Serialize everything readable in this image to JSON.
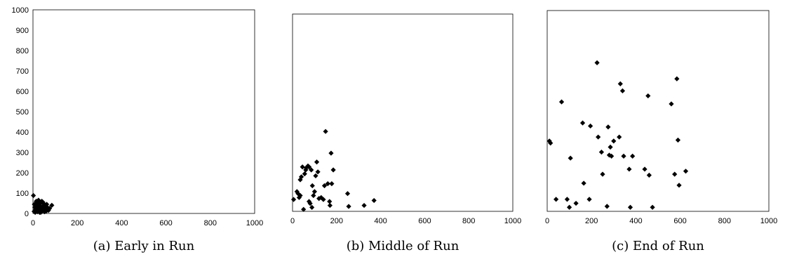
{
  "chart_data": [
    {
      "type": "scatter",
      "caption": "(a) Early in Run",
      "xlim": [
        0,
        1000
      ],
      "ylim": [
        0,
        1000
      ],
      "x_ticks": [
        0,
        200,
        400,
        600,
        800,
        1000
      ],
      "y_ticks": [
        0,
        100,
        200,
        300,
        400,
        500,
        600,
        700,
        800,
        900,
        1000
      ],
      "show_y_tick_labels": true,
      "grid": false,
      "points": [
        [
          2,
          88
        ],
        [
          5,
          10
        ],
        [
          8,
          30
        ],
        [
          10,
          5
        ],
        [
          12,
          20
        ],
        [
          14,
          45
        ],
        [
          16,
          15
        ],
        [
          18,
          35
        ],
        [
          20,
          8
        ],
        [
          22,
          55
        ],
        [
          24,
          25
        ],
        [
          26,
          12
        ],
        [
          28,
          40
        ],
        [
          30,
          5
        ],
        [
          32,
          18
        ],
        [
          34,
          50
        ],
        [
          36,
          30
        ],
        [
          38,
          10
        ],
        [
          40,
          60
        ],
        [
          42,
          22
        ],
        [
          44,
          35
        ],
        [
          46,
          15
        ],
        [
          48,
          48
        ],
        [
          50,
          28
        ],
        [
          52,
          8
        ],
        [
          55,
          40
        ],
        [
          58,
          20
        ],
        [
          60,
          12
        ],
        [
          65,
          30
        ],
        [
          70,
          15
        ],
        [
          75,
          25
        ],
        [
          85,
          40
        ],
        [
          15,
          60
        ],
        [
          25,
          65
        ],
        [
          35,
          5
        ],
        [
          45,
          55
        ],
        [
          6,
          45
        ],
        [
          62,
          45
        ]
      ]
    },
    {
      "type": "scatter",
      "caption": "(b) Middle of Run",
      "xlim": [
        0,
        1000
      ],
      "ylim": [
        0,
        1000
      ],
      "x_ticks": [
        0,
        200,
        400,
        600,
        800,
        1000
      ],
      "y_ticks": [
        0,
        100,
        200,
        300,
        400,
        500,
        600,
        700,
        800,
        900,
        1000
      ],
      "show_y_tick_labels": false,
      "grid": false,
      "points": [
        [
          5,
          60
        ],
        [
          20,
          100
        ],
        [
          25,
          90
        ],
        [
          30,
          70
        ],
        [
          35,
          160
        ],
        [
          40,
          175
        ],
        [
          45,
          225
        ],
        [
          50,
          10
        ],
        [
          55,
          190
        ],
        [
          60,
          210
        ],
        [
          62,
          220
        ],
        [
          70,
          230
        ],
        [
          75,
          225
        ],
        [
          80,
          40
        ],
        [
          85,
          210
        ],
        [
          88,
          20
        ],
        [
          90,
          130
        ],
        [
          95,
          80
        ],
        [
          100,
          100
        ],
        [
          105,
          180
        ],
        [
          110,
          250
        ],
        [
          115,
          200
        ],
        [
          120,
          65
        ],
        [
          130,
          70
        ],
        [
          140,
          60
        ],
        [
          145,
          130
        ],
        [
          150,
          405
        ],
        [
          160,
          140
        ],
        [
          168,
          50
        ],
        [
          170,
          30
        ],
        [
          175,
          295
        ],
        [
          178,
          140
        ],
        [
          185,
          210
        ],
        [
          250,
          90
        ],
        [
          255,
          25
        ],
        [
          325,
          30
        ],
        [
          370,
          55
        ],
        [
          75,
          50
        ],
        [
          35,
          80
        ]
      ]
    },
    {
      "type": "scatter",
      "caption": "(c) End of Run",
      "xlim": [
        0,
        1000
      ],
      "ylim": [
        0,
        1000
      ],
      "x_ticks": [
        0,
        200,
        400,
        600,
        800,
        1000
      ],
      "y_ticks": [
        0,
        100,
        200,
        300,
        400,
        500,
        600,
        700,
        800,
        900,
        1000
      ],
      "show_y_tick_labels": false,
      "grid": false,
      "points": [
        [
          10,
          350
        ],
        [
          15,
          340
        ],
        [
          40,
          60
        ],
        [
          65,
          545
        ],
        [
          90,
          60
        ],
        [
          100,
          20
        ],
        [
          105,
          265
        ],
        [
          130,
          40
        ],
        [
          160,
          440
        ],
        [
          165,
          140
        ],
        [
          190,
          60
        ],
        [
          195,
          425
        ],
        [
          225,
          740
        ],
        [
          230,
          370
        ],
        [
          245,
          295
        ],
        [
          250,
          185
        ],
        [
          270,
          25
        ],
        [
          275,
          420
        ],
        [
          280,
          280
        ],
        [
          285,
          320
        ],
        [
          290,
          275
        ],
        [
          300,
          350
        ],
        [
          325,
          370
        ],
        [
          330,
          635
        ],
        [
          340,
          600
        ],
        [
          345,
          275
        ],
        [
          370,
          210
        ],
        [
          375,
          20
        ],
        [
          385,
          275
        ],
        [
          440,
          210
        ],
        [
          455,
          575
        ],
        [
          460,
          180
        ],
        [
          475,
          20
        ],
        [
          560,
          535
        ],
        [
          575,
          185
        ],
        [
          585,
          660
        ],
        [
          590,
          355
        ],
        [
          595,
          130
        ],
        [
          625,
          200
        ]
      ]
    }
  ]
}
